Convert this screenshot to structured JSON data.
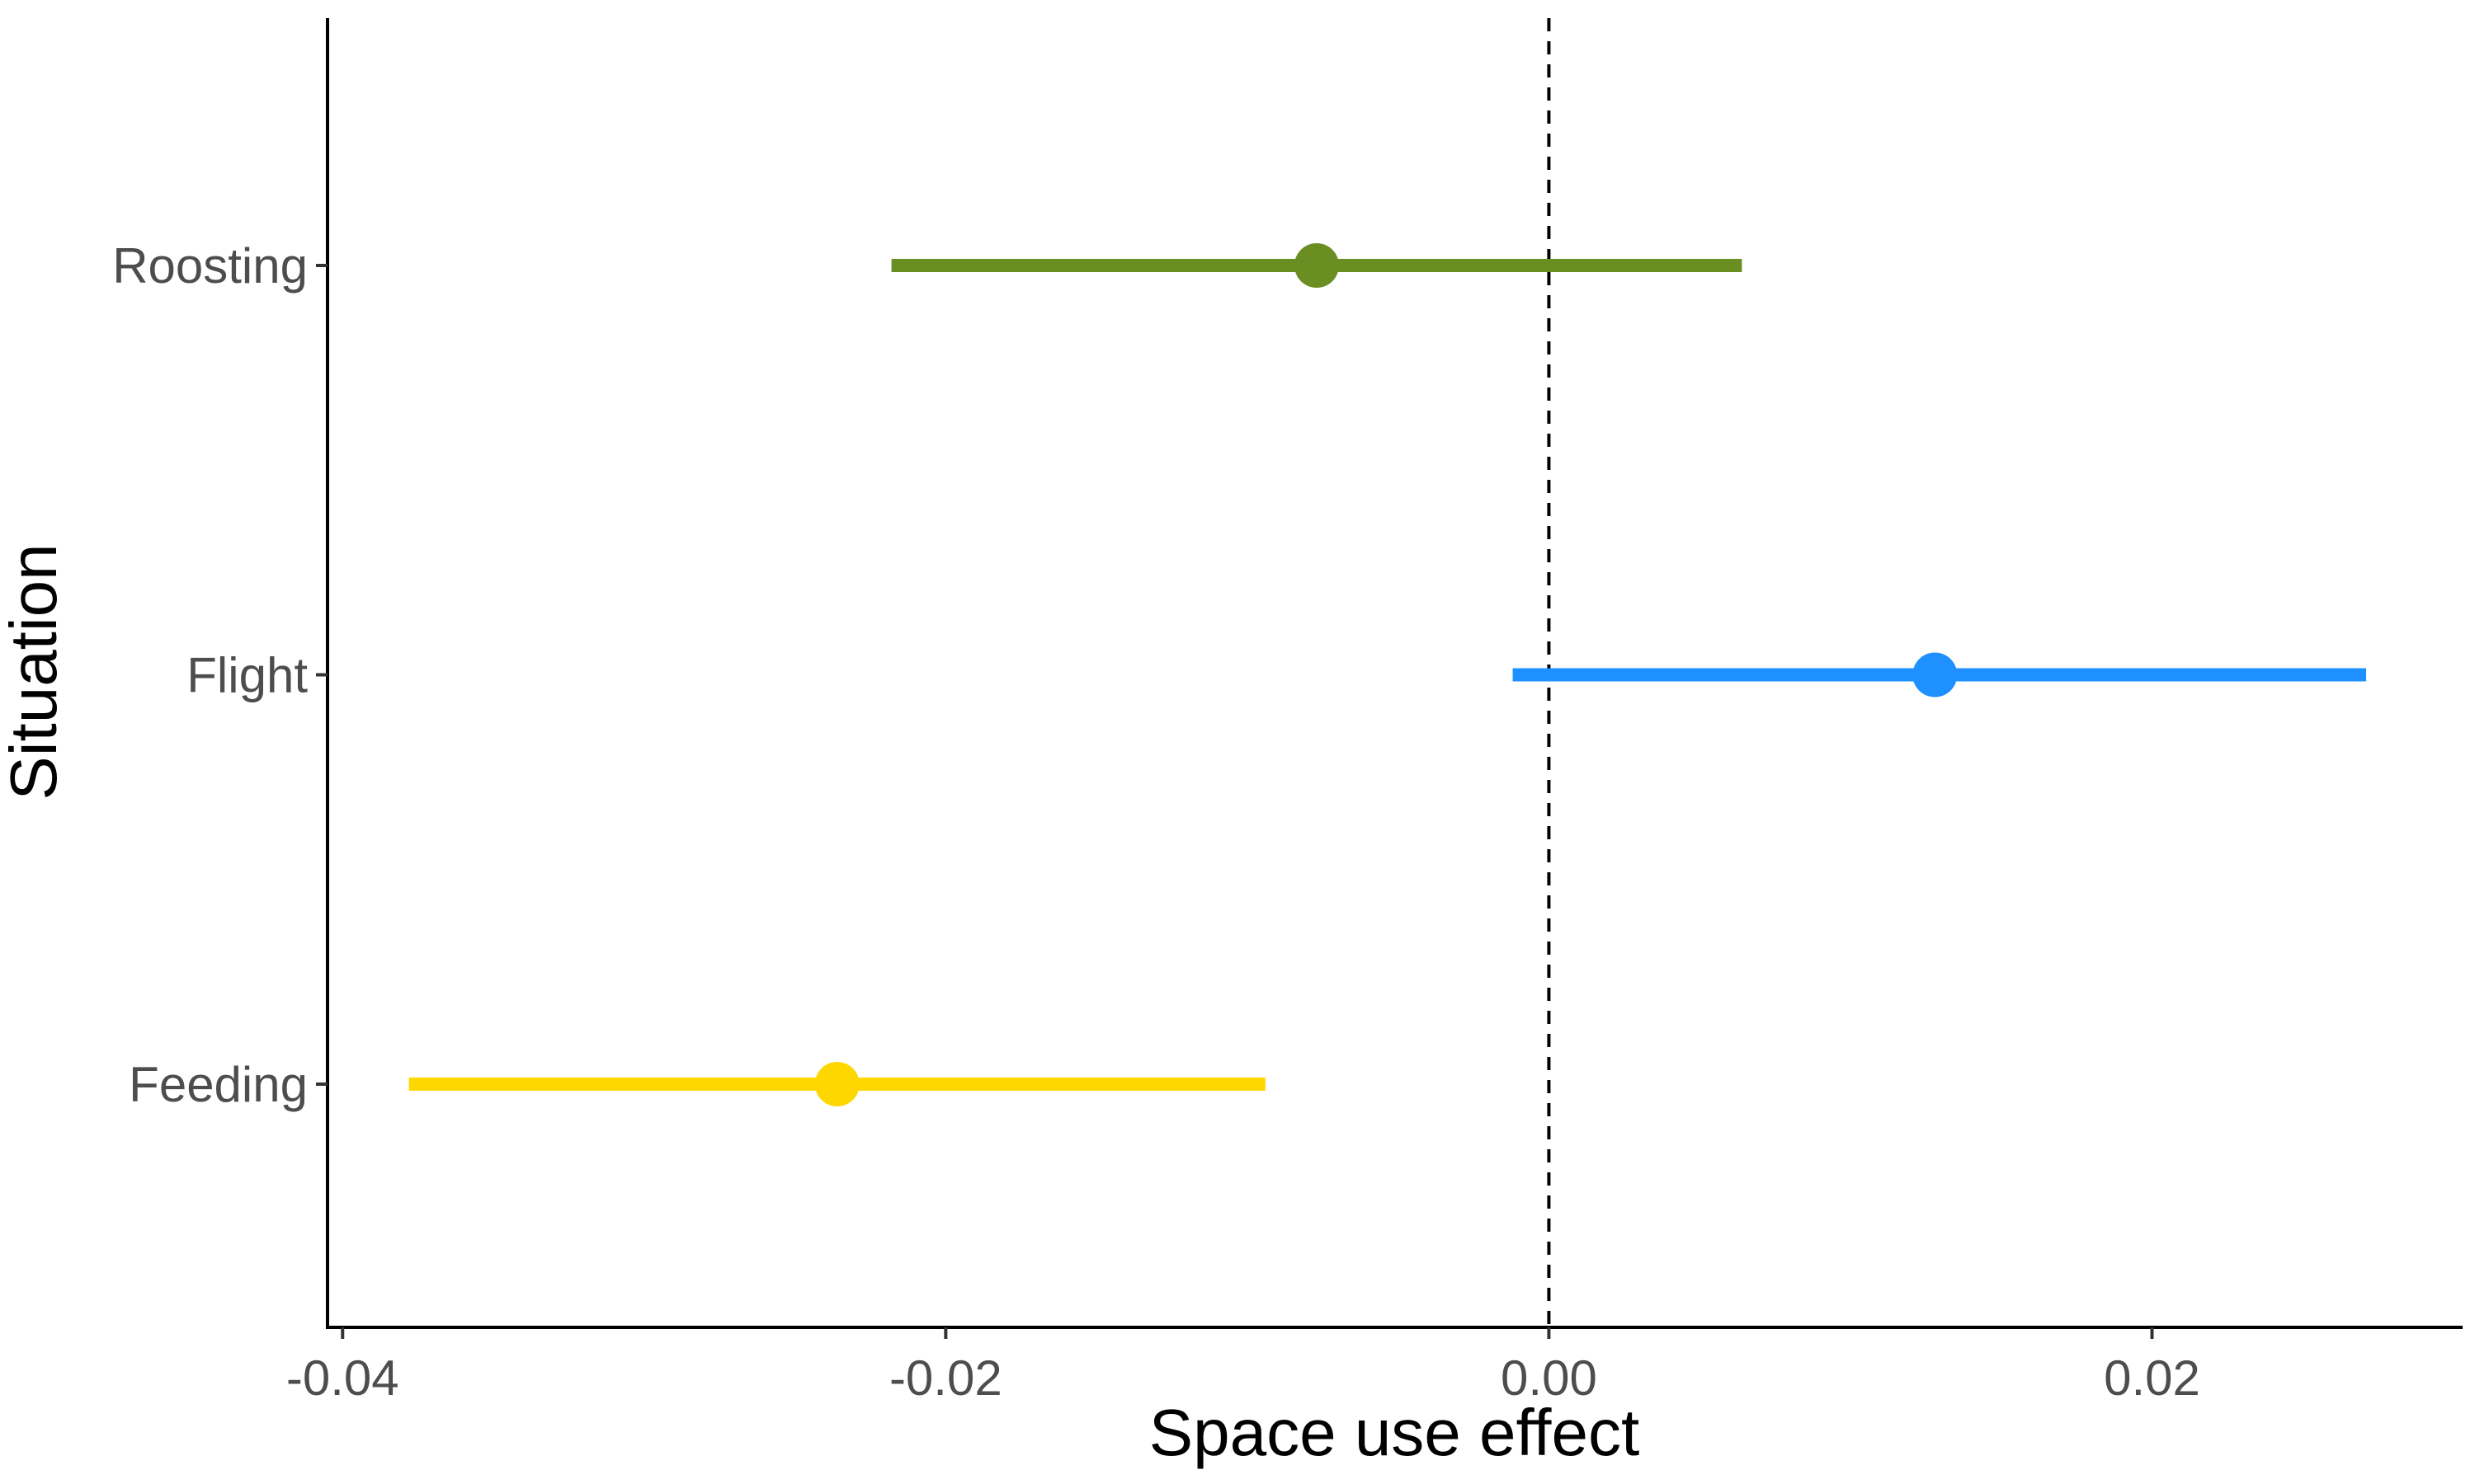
{
  "chart_data": {
    "type": "forest",
    "xlabel": "Space use effect",
    "ylabel": "Situation",
    "xlim": [
      -0.0405,
      0.0303
    ],
    "x_ticks": [
      -0.04,
      -0.02,
      0.0,
      0.02
    ],
    "x_tick_labels": [
      "-0.04",
      "-0.02",
      "0.00",
      "0.02"
    ],
    "categories": [
      "Feeding",
      "Flight",
      "Roosting"
    ],
    "reference_line": {
      "x": 0.0,
      "style": "dashed",
      "color": "#000000"
    },
    "grid": false,
    "legend": "none",
    "series": [
      {
        "category": "Roosting",
        "estimate": -0.0077,
        "lower": -0.0218,
        "upper": 0.0064,
        "color": "#6B8E23"
      },
      {
        "category": "Flight",
        "estimate": 0.0128,
        "lower": -0.0012,
        "upper": 0.0271,
        "color": "#1E90FF"
      },
      {
        "category": "Feeding",
        "estimate": -0.0236,
        "lower": -0.0378,
        "upper": -0.0094,
        "color": "#FFD700"
      }
    ]
  }
}
